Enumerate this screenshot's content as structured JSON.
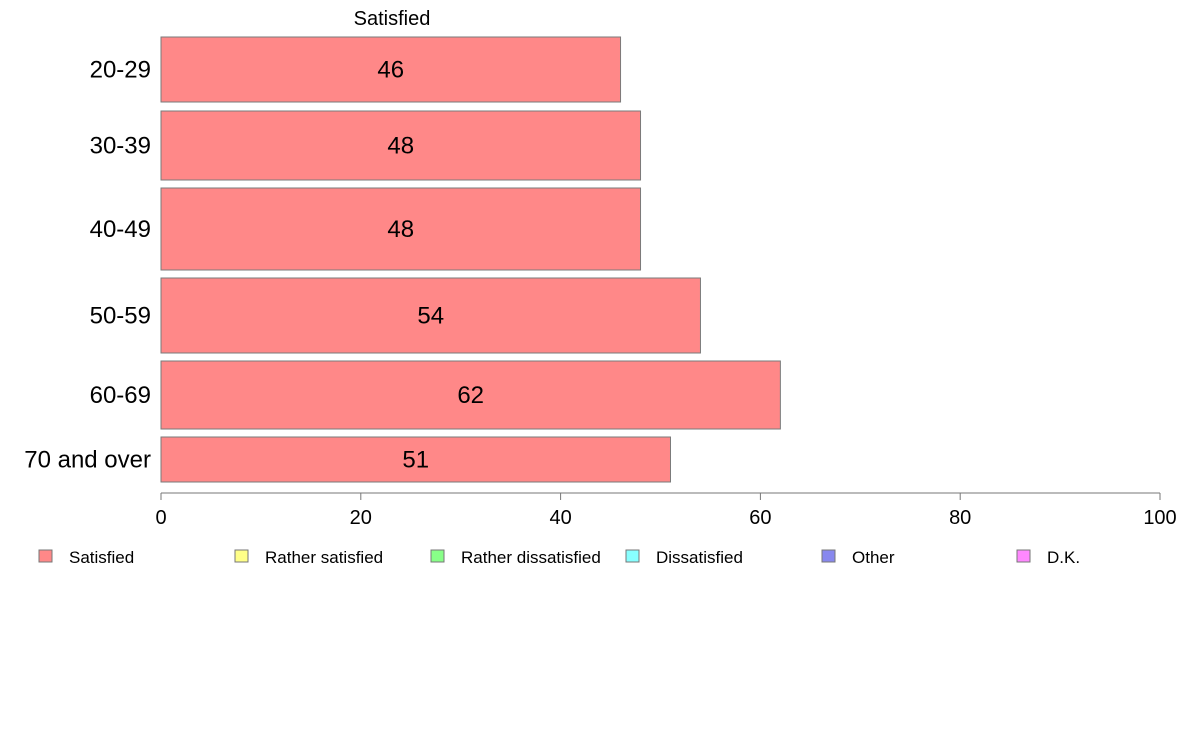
{
  "chart_data": {
    "type": "bar",
    "orientation": "horizontal",
    "title": "Satisfied",
    "categories": [
      "20-29",
      "30-39",
      "40-49",
      "50-59",
      "60-69",
      "70 and over"
    ],
    "series": [
      {
        "name": "Satisfied",
        "values": [
          46,
          48,
          48,
          54,
          62,
          51
        ],
        "color": "#ff8888"
      }
    ],
    "xlim": [
      0,
      100
    ],
    "xticks": [
      0,
      20,
      40,
      60,
      80,
      100
    ],
    "grid": false,
    "legend_position": "bottom",
    "legend": [
      {
        "label": "Satisfied",
        "color": "#ff8888"
      },
      {
        "label": "Rather satisfied",
        "color": "#ffff88"
      },
      {
        "label": "Rather dissatisfied",
        "color": "#88ff88"
      },
      {
        "label": "Dissatisfied",
        "color": "#88ffff"
      },
      {
        "label": "Other",
        "color": "#8888ee"
      },
      {
        "label": "D.K.",
        "color": "#ff88ff"
      }
    ]
  }
}
